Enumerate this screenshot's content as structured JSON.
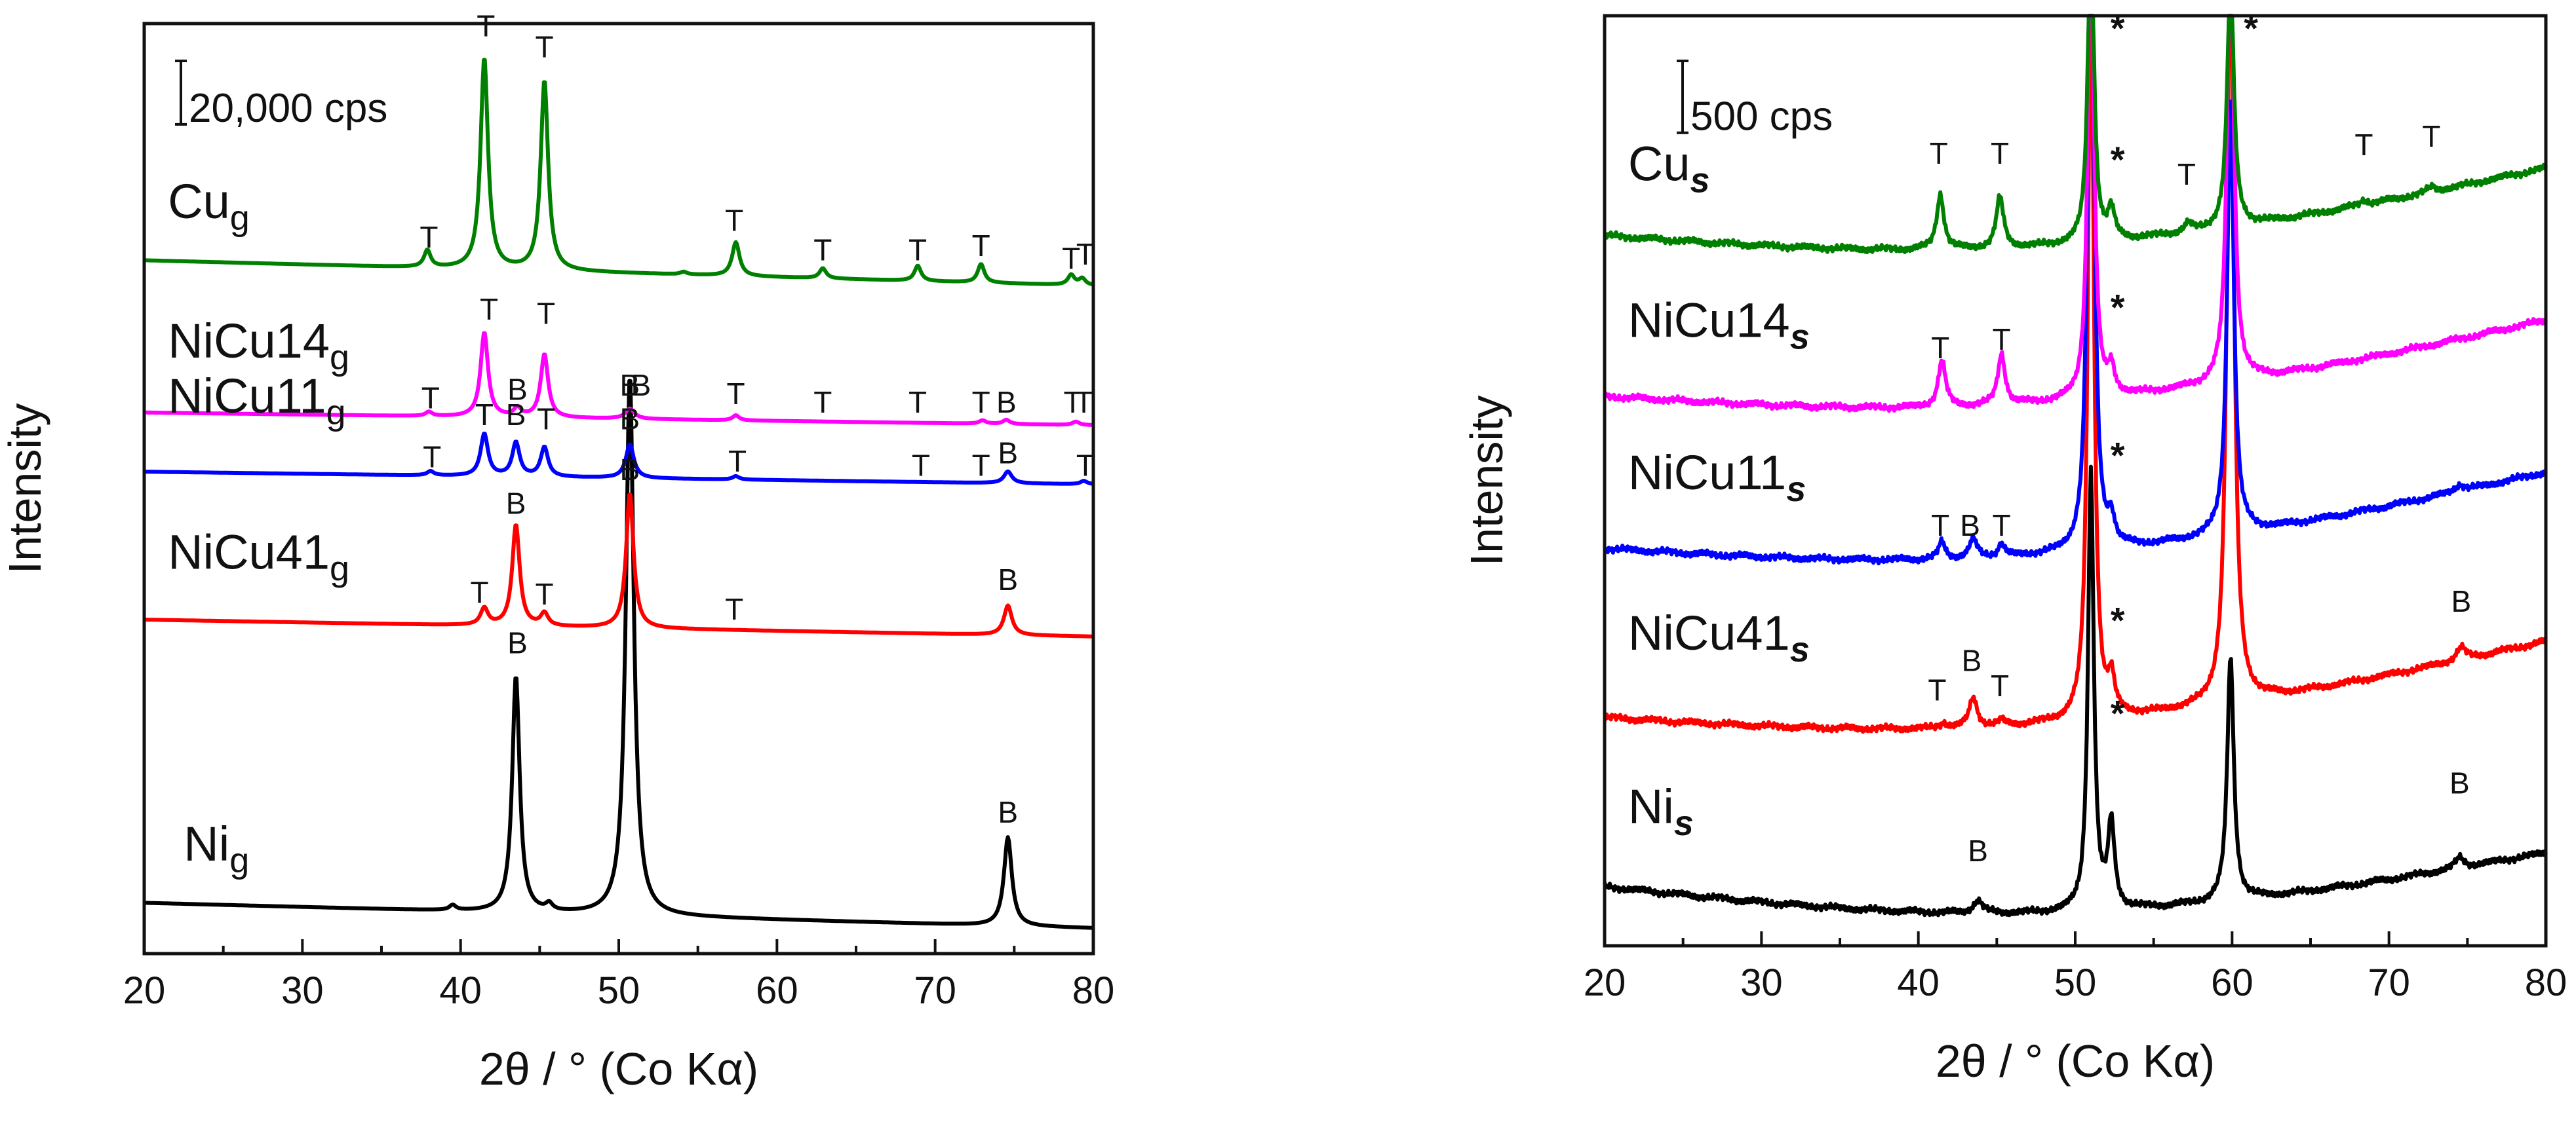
{
  "chart_data": [
    {
      "type": "line",
      "panel": "left",
      "xlabel": "2θ / °   (Co Kα)",
      "ylabel": "Intensity",
      "xlim": [
        20,
        80
      ],
      "ylim": [
        0,
        1.1
      ],
      "xticks": [
        20,
        30,
        40,
        50,
        60,
        70,
        80
      ],
      "scale_bar": "20,000 cps",
      "scale_bar_height": 0.075,
      "series": [
        {
          "name": "Ni",
          "subscript": "g",
          "color": "#000000",
          "baseline": [
            0.06,
            0.03
          ],
          "label_anchor": [
            22.5,
            0.11
          ],
          "peaks": [
            [
              43.5,
              0.28,
              0.28,
              "B"
            ],
            [
              50.7,
              0.64,
              0.3,
              "B"
            ],
            [
              74.6,
              0.105,
              0.3,
              "B"
            ],
            [
              39.5,
              0.006,
              0.25,
              ""
            ],
            [
              45.6,
              0.008,
              0.25,
              ""
            ],
            [
              51.9,
              0.0,
              0.25,
              ""
            ]
          ],
          "peak_marks": [
            [
              "B",
              43.6,
              0.355
            ],
            [
              "B",
              51.4,
              0.66
            ],
            [
              "B",
              74.6,
              0.155
            ]
          ]
        },
        {
          "name": "NiCu41",
          "subscript": "g",
          "color": "#ff0000",
          "baseline": [
            0.395,
            0.375
          ],
          "label_anchor": [
            21.5,
            0.455
          ],
          "peaks": [
            [
              41.5,
              0.02,
              0.28,
              "T"
            ],
            [
              43.5,
              0.12,
              0.28,
              "B"
            ],
            [
              45.3,
              0.015,
              0.28,
              "T"
            ],
            [
              50.7,
              0.16,
              0.28,
              "B"
            ],
            [
              74.6,
              0.035,
              0.3,
              "B"
            ]
          ],
          "peak_marks": [
            [
              "T",
              41.2,
              0.415
            ],
            [
              "B",
              43.5,
              0.52
            ],
            [
              "T",
              45.3,
              0.413
            ],
            [
              "B",
              50.7,
              0.56
            ],
            [
              "T",
              57.3,
              0.395
            ],
            [
              "B",
              74.6,
              0.43
            ]
          ]
        },
        {
          "name": "NiCu11",
          "subscript": "g",
          "color": "#0000ff",
          "baseline": [
            0.57,
            0.555
          ],
          "label_anchor": [
            21.5,
            0.64
          ],
          "peaks": [
            [
              38.1,
              0.005,
              0.25,
              "T"
            ],
            [
              41.5,
              0.05,
              0.28,
              "T"
            ],
            [
              43.5,
              0.04,
              0.28,
              "B"
            ],
            [
              45.3,
              0.035,
              0.28,
              "T"
            ],
            [
              50.7,
              0.04,
              0.3,
              "B"
            ],
            [
              57.4,
              0.004,
              0.25,
              "T"
            ],
            [
              74.6,
              0.014,
              0.3,
              "B"
            ],
            [
              79.4,
              0.004,
              0.25,
              "T"
            ]
          ],
          "peak_marks": [
            [
              "T",
              38.2,
              0.575
            ],
            [
              "T",
              41.5,
              0.625
            ],
            [
              "B",
              43.5,
              0.625
            ],
            [
              "T",
              45.4,
              0.62
            ],
            [
              "B",
              50.7,
              0.62
            ],
            [
              "T",
              57.5,
              0.57
            ],
            [
              "T",
              69.1,
              0.565
            ],
            [
              "T",
              72.9,
              0.565
            ],
            [
              "B",
              74.6,
              0.58
            ],
            [
              "T",
              79.5,
              0.565
            ]
          ]
        },
        {
          "name": "NiCu14",
          "subscript": "g",
          "color": "#ff00ff",
          "baseline": [
            0.64,
            0.625
          ],
          "label_anchor": [
            21.5,
            0.705
          ],
          "peaks": [
            [
              38.0,
              0.005,
              0.25,
              "T"
            ],
            [
              41.5,
              0.1,
              0.28,
              "T"
            ],
            [
              43.6,
              0.01,
              0.28,
              "B"
            ],
            [
              45.3,
              0.075,
              0.28,
              "T"
            ],
            [
              50.7,
              0.012,
              0.35,
              "B"
            ],
            [
              57.4,
              0.006,
              0.25,
              "T"
            ],
            [
              73.0,
              0.004,
              0.25,
              "T"
            ],
            [
              74.5,
              0.005,
              0.25,
              "B"
            ],
            [
              78.9,
              0.004,
              0.25,
              "T"
            ]
          ],
          "peak_marks": [
            [
              "T",
              38.1,
              0.645
            ],
            [
              "T",
              41.8,
              0.75
            ],
            [
              "B",
              43.6,
              0.655
            ],
            [
              "T",
              45.4,
              0.745
            ],
            [
              "B",
              50.7,
              0.66
            ],
            [
              "T",
              57.4,
              0.65
            ],
            [
              "T",
              62.9,
              0.64
            ],
            [
              "T",
              68.9,
              0.64
            ],
            [
              "T",
              72.9,
              0.64
            ],
            [
              "B",
              74.5,
              0.64
            ],
            [
              "T",
              78.7,
              0.64
            ],
            [
              "T",
              79.4,
              0.64
            ]
          ]
        },
        {
          "name": "Cu",
          "subscript": "g",
          "color": "#008000",
          "baseline": [
            0.82,
            0.79
          ],
          "label_anchor": [
            21.5,
            0.87
          ],
          "peaks": [
            [
              37.9,
              0.02,
              0.25,
              "T"
            ],
            [
              41.5,
              0.25,
              0.28,
              "T"
            ],
            [
              45.3,
              0.225,
              0.28,
              "T"
            ],
            [
              54.1,
              0.003,
              0.25,
              ""
            ],
            [
              57.4,
              0.04,
              0.28,
              "T"
            ],
            [
              62.9,
              0.012,
              0.25,
              "T"
            ],
            [
              68.9,
              0.018,
              0.25,
              "T"
            ],
            [
              72.9,
              0.022,
              0.25,
              "T"
            ],
            [
              78.6,
              0.012,
              0.25,
              "T"
            ],
            [
              79.3,
              0.008,
              0.25,
              "T"
            ]
          ],
          "peak_marks": [
            [
              "T",
              38.0,
              0.835
            ],
            [
              "T",
              41.6,
              1.085
            ],
            [
              "T",
              45.3,
              1.06
            ],
            [
              "T",
              57.3,
              0.855
            ],
            [
              "T",
              62.9,
              0.82
            ],
            [
              "T",
              68.9,
              0.82
            ],
            [
              "T",
              72.9,
              0.825
            ],
            [
              "T",
              78.6,
              0.81
            ],
            [
              "T",
              79.5,
              0.815
            ]
          ]
        }
      ]
    },
    {
      "type": "line",
      "panel": "right",
      "xlabel": "2θ / °   (Co Kα)",
      "ylabel": "Intensity",
      "xlim": [
        20,
        80
      ],
      "ylim": [
        0,
        1.1
      ],
      "xticks": [
        20,
        30,
        40,
        50,
        60,
        70,
        80
      ],
      "scale_bar": "500 cps",
      "scale_bar_height": 0.085,
      "series": [
        {
          "name": "Ni",
          "subscript": "s",
          "color": "#000000",
          "baseline": [
            0.07,
            0.11
          ],
          "bulge": -0.05,
          "noise": 0.005,
          "label_anchor": [
            21.5,
            0.145
          ],
          "peaks": [
            [
              51.0,
              0.52,
              0.22,
              "*"
            ],
            [
              52.3,
              0.1,
              0.25,
              "*"
            ],
            [
              59.9,
              0.29,
              0.25,
              "*"
            ],
            [
              43.8,
              0.015,
              0.35,
              "B"
            ],
            [
              74.5,
              0.012,
              0.35,
              "B"
            ]
          ],
          "peak_marks": [
            [
              "*",
              52.7,
              0.26
            ],
            [
              "B",
              43.8,
              0.1
            ],
            [
              "B",
              74.5,
              0.18
            ]
          ]
        },
        {
          "name": "NiCu41",
          "subscript": "s",
          "color": "#ff0000",
          "baseline": [
            0.27,
            0.36
          ],
          "bulge": -0.05,
          "noise": 0.005,
          "label_anchor": [
            21.5,
            0.35
          ],
          "peaks": [
            [
              51.0,
              0.9,
              0.22,
              "*"
            ],
            [
              52.3,
              0.04,
              0.25,
              "*"
            ],
            [
              59.9,
              0.95,
              0.25,
              "*"
            ],
            [
              43.5,
              0.035,
              0.3,
              "B"
            ],
            [
              41.6,
              0.006,
              0.25,
              "T"
            ],
            [
              45.3,
              0.006,
              0.25,
              "T"
            ],
            [
              74.6,
              0.015,
              0.35,
              "B"
            ]
          ],
          "peak_marks": [
            [
              "*",
              52.7,
              0.37
            ],
            [
              "T",
              41.2,
              0.29
            ],
            [
              "B",
              43.4,
              0.325
            ],
            [
              "T",
              45.2,
              0.295
            ],
            [
              "B",
              74.6,
              0.395
            ]
          ]
        },
        {
          "name": "NiCu11",
          "subscript": "s",
          "color": "#0000ff",
          "baseline": [
            0.47,
            0.56
          ],
          "bulge": -0.05,
          "noise": 0.005,
          "label_anchor": [
            21.5,
            0.54
          ],
          "peaks": [
            [
              51.0,
              0.9,
              0.22,
              "*"
            ],
            [
              52.3,
              0.03,
              0.25,
              "*"
            ],
            [
              59.9,
              0.52,
              0.25,
              "*"
            ],
            [
              41.5,
              0.02,
              0.25,
              "T"
            ],
            [
              43.5,
              0.022,
              0.3,
              "B"
            ],
            [
              45.3,
              0.015,
              0.25,
              "T"
            ],
            [
              74.5,
              0.008,
              0.35,
              ""
            ]
          ],
          "peak_marks": [
            [
              "*",
              52.7,
              0.565
            ],
            [
              "T",
              41.4,
              0.485
            ],
            [
              "B",
              43.3,
              0.485
            ],
            [
              "T",
              45.3,
              0.485
            ]
          ]
        },
        {
          "name": "NiCu14",
          "subscript": "s",
          "color": "#ff00ff",
          "baseline": [
            0.65,
            0.74
          ],
          "bulge": -0.05,
          "noise": 0.005,
          "label_anchor": [
            21.5,
            0.72
          ],
          "peaks": [
            [
              51.0,
              0.6,
              0.22,
              "*"
            ],
            [
              52.3,
              0.03,
              0.25,
              "*"
            ],
            [
              59.9,
              0.55,
              0.25,
              "*"
            ],
            [
              41.5,
              0.055,
              0.28,
              "T"
            ],
            [
              45.3,
              0.06,
              0.28,
              "T"
            ]
          ],
          "peak_marks": [
            [
              "*",
              52.7,
              0.74
            ],
            [
              "T",
              41.4,
              0.695
            ],
            [
              "T",
              45.3,
              0.705
            ]
          ]
        },
        {
          "name": "Cu",
          "subscript": "s",
          "color": "#008000",
          "baseline": [
            0.84,
            0.92
          ],
          "bulge": -0.05,
          "noise": 0.005,
          "label_anchor": [
            21.5,
            0.905
          ],
          "peaks": [
            [
              51.0,
              0.4,
              0.22,
              "*"
            ],
            [
              52.3,
              0.035,
              0.25,
              "*"
            ],
            [
              59.9,
              0.3,
              0.25,
              "*"
            ],
            [
              41.4,
              0.065,
              0.28,
              "T"
            ],
            [
              45.2,
              0.06,
              0.28,
              "T"
            ],
            [
              57.2,
              0.01,
              0.3,
              "T"
            ],
            [
              68.4,
              0.006,
              0.3,
              "T"
            ],
            [
              72.7,
              0.006,
              0.3,
              "T"
            ]
          ],
          "peak_marks": [
            [
              "*",
              52.7,
              1.07
            ],
            [
              "*",
              61.2,
              1.07
            ],
            [
              "*",
              52.7,
              0.915
            ],
            [
              "T",
              41.3,
              0.925
            ],
            [
              "T",
              45.2,
              0.925
            ],
            [
              "T",
              57.1,
              0.9
            ],
            [
              "T",
              68.4,
              0.935
            ],
            [
              "T",
              72.7,
              0.945
            ]
          ]
        }
      ]
    }
  ]
}
